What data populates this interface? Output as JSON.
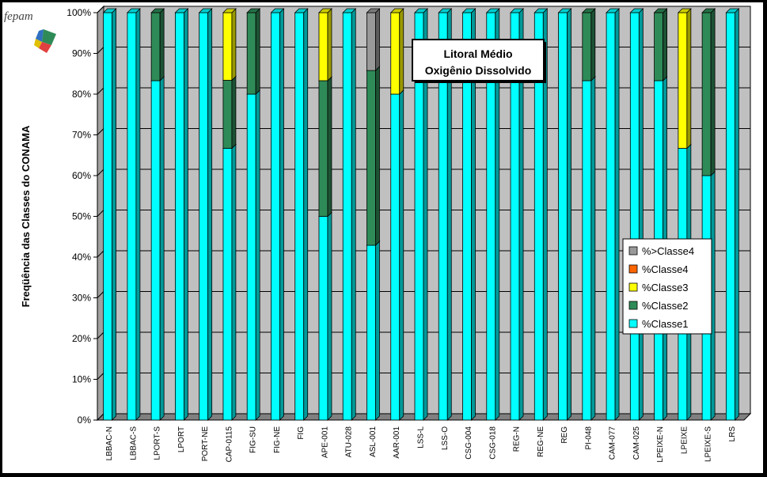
{
  "logo": {
    "text": "fepam"
  },
  "colors": {
    "classe1": "#00FFFF",
    "classe2": "#2E8B57",
    "classe3": "#FFFF00",
    "classe4": "#FF6600",
    "gt_classe4": "#999999",
    "plot_bg": "#C0C0C0"
  },
  "chart_data": {
    "type": "bar",
    "stacked": true,
    "title": "Litoral Médio",
    "subtitle": "Oxigênio Dissolvido",
    "ylabel": "Freqüência das Classes do CONAMA",
    "xlabel": "",
    "ylim": [
      0,
      100
    ],
    "yticks": [
      "0%",
      "10%",
      "20%",
      "30%",
      "40%",
      "50%",
      "60%",
      "70%",
      "80%",
      "90%",
      "100%"
    ],
    "grid": true,
    "legend_position": "right",
    "categories": [
      "LBBAC-N",
      "LBBAC-S",
      "LPORT-S",
      "LPORT",
      "PORT-NE",
      "CAP-0115",
      "FIG-SU",
      "FIG-NE",
      "FIG",
      "APE-001",
      "ATU-028",
      "ASL-001",
      "AAR-001",
      "LSS-L",
      "LSS-O",
      "CSG-004",
      "CSG-018",
      "REG-N",
      "REG-NE",
      "REG",
      "PI-048",
      "CAM-077",
      "CAM-025",
      "LPEIXE-N",
      "LPEIXE",
      "LPEIXE-S",
      "LRS"
    ],
    "series": [
      {
        "name": "%Classe1",
        "color": "#00FFFF",
        "values": [
          100,
          100,
          83.3,
          100,
          100,
          66.7,
          80,
          100,
          100,
          50,
          100,
          42.9,
          80,
          100,
          100,
          100,
          100,
          100,
          100,
          100,
          83.3,
          100,
          100,
          83.3,
          66.7,
          60,
          100
        ]
      },
      {
        "name": "%Classe2",
        "color": "#2E8B57",
        "values": [
          0,
          0,
          16.7,
          0,
          0,
          16.7,
          20,
          0,
          0,
          33.3,
          0,
          42.9,
          0,
          0,
          0,
          0,
          0,
          0,
          0,
          0,
          16.7,
          0,
          0,
          16.7,
          0,
          40,
          0
        ]
      },
      {
        "name": "%Classe3",
        "color": "#FFFF00",
        "values": [
          0,
          0,
          0,
          0,
          0,
          16.6,
          0,
          0,
          0,
          16.7,
          0,
          0,
          20,
          0,
          0,
          0,
          0,
          0,
          0,
          0,
          0,
          0,
          0,
          0,
          33.3,
          0,
          0
        ]
      },
      {
        "name": "%Classe4",
        "color": "#FF6600",
        "values": [
          0,
          0,
          0,
          0,
          0,
          0,
          0,
          0,
          0,
          0,
          0,
          0,
          0,
          0,
          0,
          0,
          0,
          0,
          0,
          0,
          0,
          0,
          0,
          0,
          0,
          0,
          0
        ]
      },
      {
        "name": "%>Classe4",
        "color": "#999999",
        "values": [
          0,
          0,
          0,
          0,
          0,
          0,
          0,
          0,
          0,
          0,
          0,
          14.2,
          0,
          0,
          0,
          0,
          0,
          0,
          0,
          0,
          0,
          0,
          0,
          0,
          0,
          0,
          0
        ]
      }
    ],
    "legend_order": [
      "%>Classe4",
      "%Classe4",
      "%Classe3",
      "%Classe2",
      "%Classe1"
    ]
  }
}
